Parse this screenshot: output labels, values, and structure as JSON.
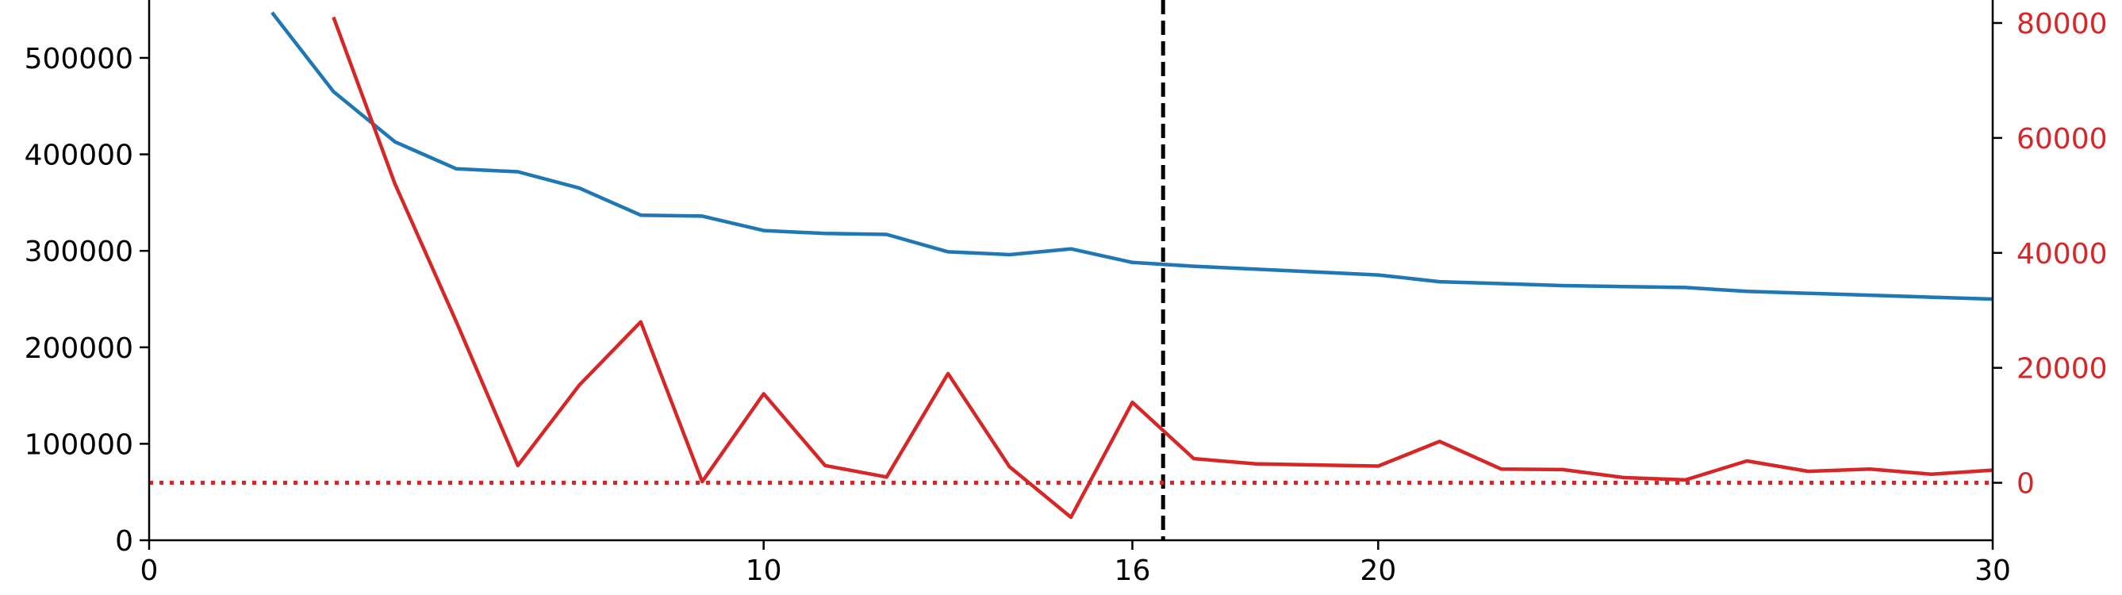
{
  "chart_data": {
    "type": "line",
    "title": "",
    "xlabel": "",
    "ylabel": "",
    "y2label": "",
    "xlim": [
      0,
      30
    ],
    "ylim": [
      0,
      560000
    ],
    "y2lim": [
      -10000,
      84000
    ],
    "grid": false,
    "legend": "none",
    "x_ticks": [
      0,
      10,
      16,
      20,
      30
    ],
    "x_tick_labels": [
      "0",
      "10",
      "16",
      "20",
      "30"
    ],
    "y_ticks": [
      0,
      100000,
      200000,
      300000,
      400000,
      500000
    ],
    "y_tick_labels": [
      "0",
      "100000",
      "200000",
      "300000",
      "400000",
      "500000"
    ],
    "y2_ticks": [
      0,
      20000,
      40000,
      60000,
      80000
    ],
    "y2_tick_labels": [
      "0",
      "20000",
      "40000",
      "60000",
      "80000"
    ],
    "series": [
      {
        "axis": "left",
        "color": "#1f77b4",
        "x": [
          2,
          3,
          4,
          5,
          6,
          7,
          8,
          9,
          10,
          11,
          12,
          13,
          14,
          15,
          16,
          17,
          18,
          19,
          20,
          21,
          22,
          23,
          24,
          25,
          26,
          27,
          28,
          29,
          30
        ],
        "values": [
          547000,
          465000,
          413000,
          385000,
          382000,
          365000,
          337000,
          336000,
          321000,
          318000,
          317000,
          299000,
          296000,
          302000,
          288000,
          284000,
          281000,
          278000,
          275000,
          268000,
          266000,
          264000,
          263000,
          262000,
          258000,
          256000,
          254000,
          252000,
          250000
        ]
      },
      {
        "axis": "right",
        "color": "#d62728",
        "x": [
          3,
          4,
          5,
          6,
          7,
          8,
          9,
          10,
          11,
          12,
          13,
          14,
          15,
          16,
          17,
          18,
          19,
          20,
          21,
          22,
          23,
          24,
          25,
          26,
          27,
          28,
          29,
          30
        ],
        "values": [
          81000,
          52000,
          28000,
          3000,
          17000,
          28000,
          200,
          15500,
          3000,
          1000,
          19000,
          2800,
          -6000,
          14000,
          4200,
          3300,
          3100,
          2900,
          7200,
          2400,
          2300,
          900,
          500,
          3800,
          2000,
          2400,
          1500,
          2200
        ]
      }
    ],
    "reference_lines": [
      {
        "orientation": "vertical",
        "x": 16.5,
        "style": "dashed",
        "color": "#000000"
      },
      {
        "orientation": "horizontal",
        "axis": "right",
        "y": 0,
        "style": "dotted",
        "color": "#d62728"
      }
    ]
  }
}
